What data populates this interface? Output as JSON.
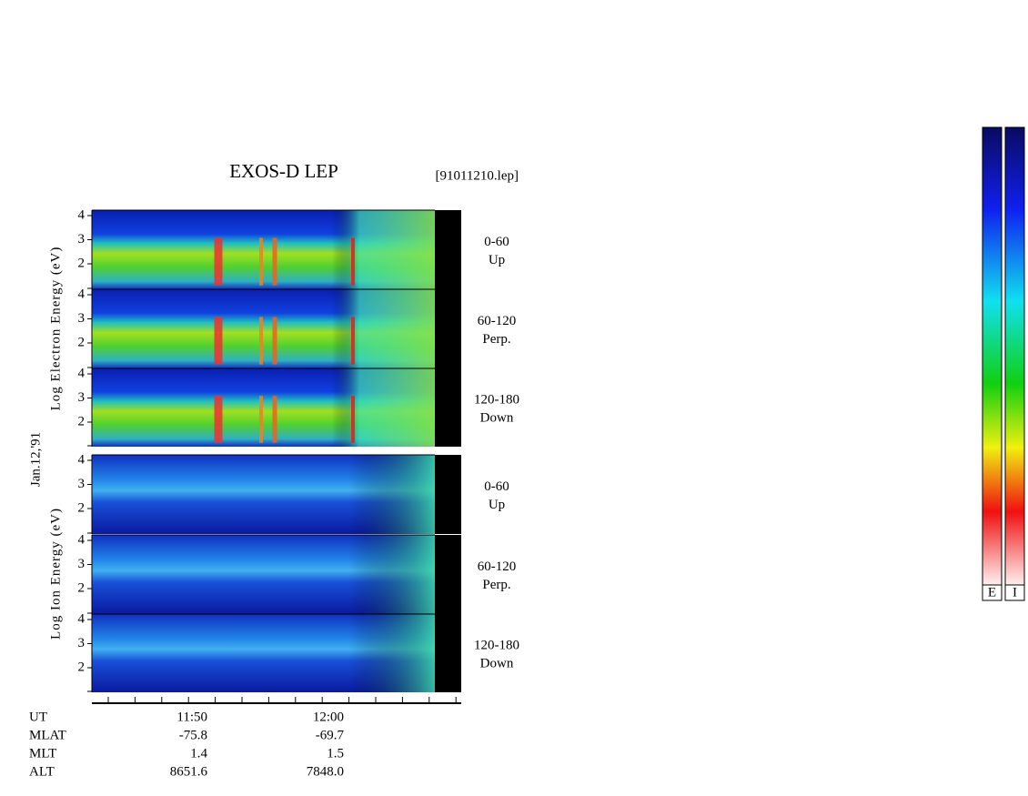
{
  "title": "EXOS-D LEP",
  "file": "[91011210.lep]",
  "date": "Jan.12,'91",
  "groups": [
    {
      "ylabel": "Log Electron Energy (eV)",
      "panels": [
        {
          "angle": "0-60",
          "direction": "Up",
          "yticks": [
            "4",
            "3",
            "2"
          ]
        },
        {
          "angle": "60-120",
          "direction": "Perp.",
          "yticks": [
            "4",
            "3",
            "2"
          ]
        },
        {
          "angle": "120-180",
          "direction": "Down",
          "yticks": [
            "4",
            "3",
            "2"
          ]
        }
      ]
    },
    {
      "ylabel": "Log Ion Energy (eV)",
      "panels": [
        {
          "angle": "0-60",
          "direction": "Up",
          "yticks": [
            "4",
            "3",
            "2"
          ]
        },
        {
          "angle": "60-120",
          "direction": "Perp.",
          "yticks": [
            "4",
            "3",
            "2"
          ]
        },
        {
          "angle": "120-180",
          "direction": "Down",
          "yticks": [
            "4",
            "3",
            "2"
          ]
        }
      ]
    }
  ],
  "footer": {
    "rows": [
      [
        "UT",
        "11:50",
        "12:00"
      ],
      [
        "MLAT",
        "-75.8",
        "-69.7"
      ],
      [
        "MLT",
        "1.4",
        "1.5"
      ],
      [
        "ALT",
        "8651.6",
        "7848.0"
      ]
    ]
  },
  "colorbars": [
    "E",
    "I"
  ]
}
